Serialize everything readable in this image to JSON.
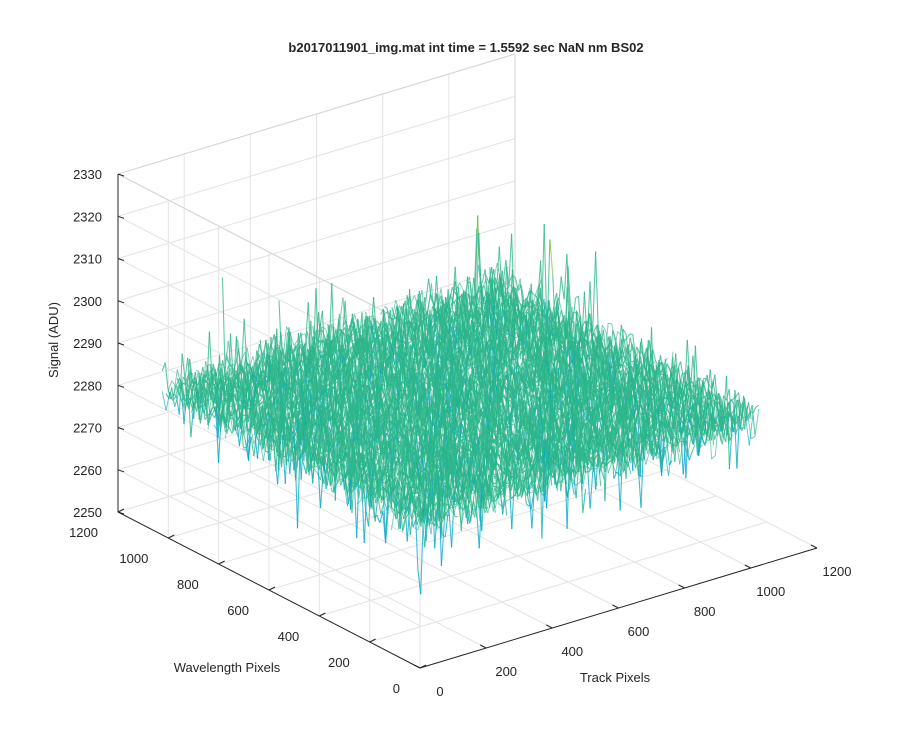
{
  "chart_data": {
    "type": "surface",
    "title": "b2017011901_img.mat int time = 1.5592 sec  NaN nm BS02",
    "xlabel": "Track Pixels",
    "ylabel": "Wavelength Pixels",
    "zlabel": "Signal (ADU)",
    "xlim": [
      0,
      1200
    ],
    "ylim": [
      0,
      1200
    ],
    "zlim": [
      2250,
      2330
    ],
    "x_ticks": [
      0,
      200,
      400,
      600,
      800,
      1000,
      1200
    ],
    "y_ticks": [
      0,
      200,
      400,
      600,
      800,
      1000,
      1200
    ],
    "z_ticks": [
      2250,
      2260,
      2270,
      2280,
      2290,
      2300,
      2310,
      2320,
      2330
    ],
    "x_tick_labels": [
      "0",
      "200",
      "400",
      "600",
      "800",
      "1000",
      "1200"
    ],
    "y_tick_labels": [
      "0",
      "200",
      "400",
      "600",
      "800",
      "1000",
      "1200"
    ],
    "z_tick_labels": [
      "2250",
      "2260",
      "2270",
      "2280",
      "2290",
      "2300",
      "2310",
      "2320",
      "2330"
    ],
    "grid": true,
    "surface": {
      "x_extent": [
        0,
        1024
      ],
      "y_extent": [
        0,
        1024
      ],
      "mean_signal": 2285,
      "noise_range": [
        2252,
        2326
      ],
      "colormap": [
        "#0072bd",
        "#00a5c8",
        "#2cb58a",
        "#8cc63e",
        "#e4c63a"
      ]
    }
  }
}
